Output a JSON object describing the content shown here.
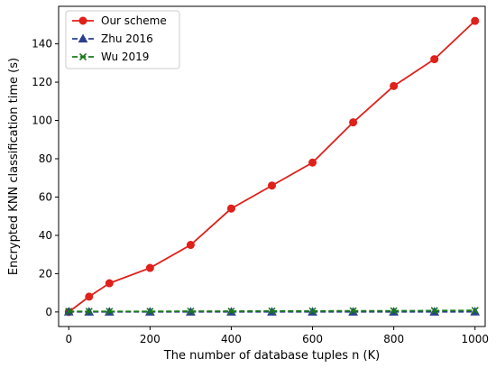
{
  "chart_data": {
    "type": "line",
    "xlabel": "The number of database tuples n (K)",
    "ylabel": "Encrypted KNN classification time (s)",
    "x": [
      0,
      50,
      100,
      200,
      300,
      400,
      500,
      600,
      700,
      800,
      900,
      1000
    ],
    "xlim": [
      -25,
      1025
    ],
    "ylim": [
      -7.6,
      159.6
    ],
    "xticks": [
      0,
      200,
      400,
      600,
      800,
      1000
    ],
    "yticks": [
      0,
      20,
      40,
      60,
      80,
      100,
      120,
      140
    ],
    "legend_position": "top-left",
    "grid": false,
    "series": [
      {
        "name": "Our scheme",
        "color": "#e0201a",
        "marker": "circle",
        "linestyle": "solid",
        "values": [
          0,
          8,
          15,
          23,
          35,
          54,
          66,
          78,
          99,
          118,
          132,
          152
        ]
      },
      {
        "name": "Zhu 2016",
        "color": "#2a3f8f",
        "marker": "triangle",
        "linestyle": "dashed",
        "values": [
          0.1,
          0.05,
          0.05,
          0.05,
          0.05,
          0.05,
          0.05,
          0.05,
          0.05,
          0.05,
          0.05,
          0.1
        ]
      },
      {
        "name": "Wu 2019",
        "color": "#1a7a1a",
        "marker": "x",
        "linestyle": "dashed",
        "values": [
          0.3,
          0.3,
          0.3,
          0.3,
          0.4,
          0.4,
          0.5,
          0.5,
          0.6,
          0.6,
          0.7,
          0.8
        ]
      }
    ]
  }
}
